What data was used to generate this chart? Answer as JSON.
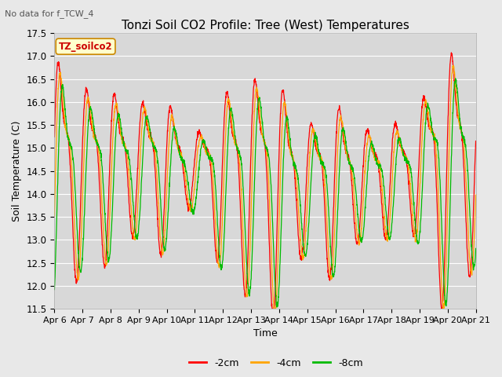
{
  "title": "Tonzi Soil CO2 Profile: Tree (West) Temperatures",
  "subtitle": "No data for f_TCW_4",
  "ylabel": "Soil Temperature (C)",
  "xlabel": "Time",
  "legend_label": "TZ_soilco2",
  "series_labels": [
    "-2cm",
    "-4cm",
    "-8cm"
  ],
  "series_colors": [
    "#ff0000",
    "#ffa500",
    "#00bb00"
  ],
  "ylim": [
    11.5,
    17.5
  ],
  "yticks": [
    11.5,
    12.0,
    12.5,
    13.0,
    13.5,
    14.0,
    14.5,
    15.0,
    15.5,
    16.0,
    16.5,
    17.0,
    17.5
  ],
  "xtick_labels": [
    "Apr 6",
    "Apr 7",
    "Apr 8",
    "Apr 9",
    "Apr 10",
    "Apr 11",
    "Apr 12",
    "Apr 13",
    "Apr 14",
    "Apr 15",
    "Apr 16",
    "Apr 17",
    "Apr 18",
    "Apr 19",
    "Apr 20",
    "Apr 21"
  ],
  "fig_bg_color": "#e8e8e8",
  "plot_bg_color": "#d8d8d8",
  "grid_color": "#ffffff",
  "title_fontsize": 11,
  "axis_label_fontsize": 9,
  "tick_fontsize": 8.5,
  "figsize": [
    6.4,
    4.8
  ],
  "dpi": 100
}
